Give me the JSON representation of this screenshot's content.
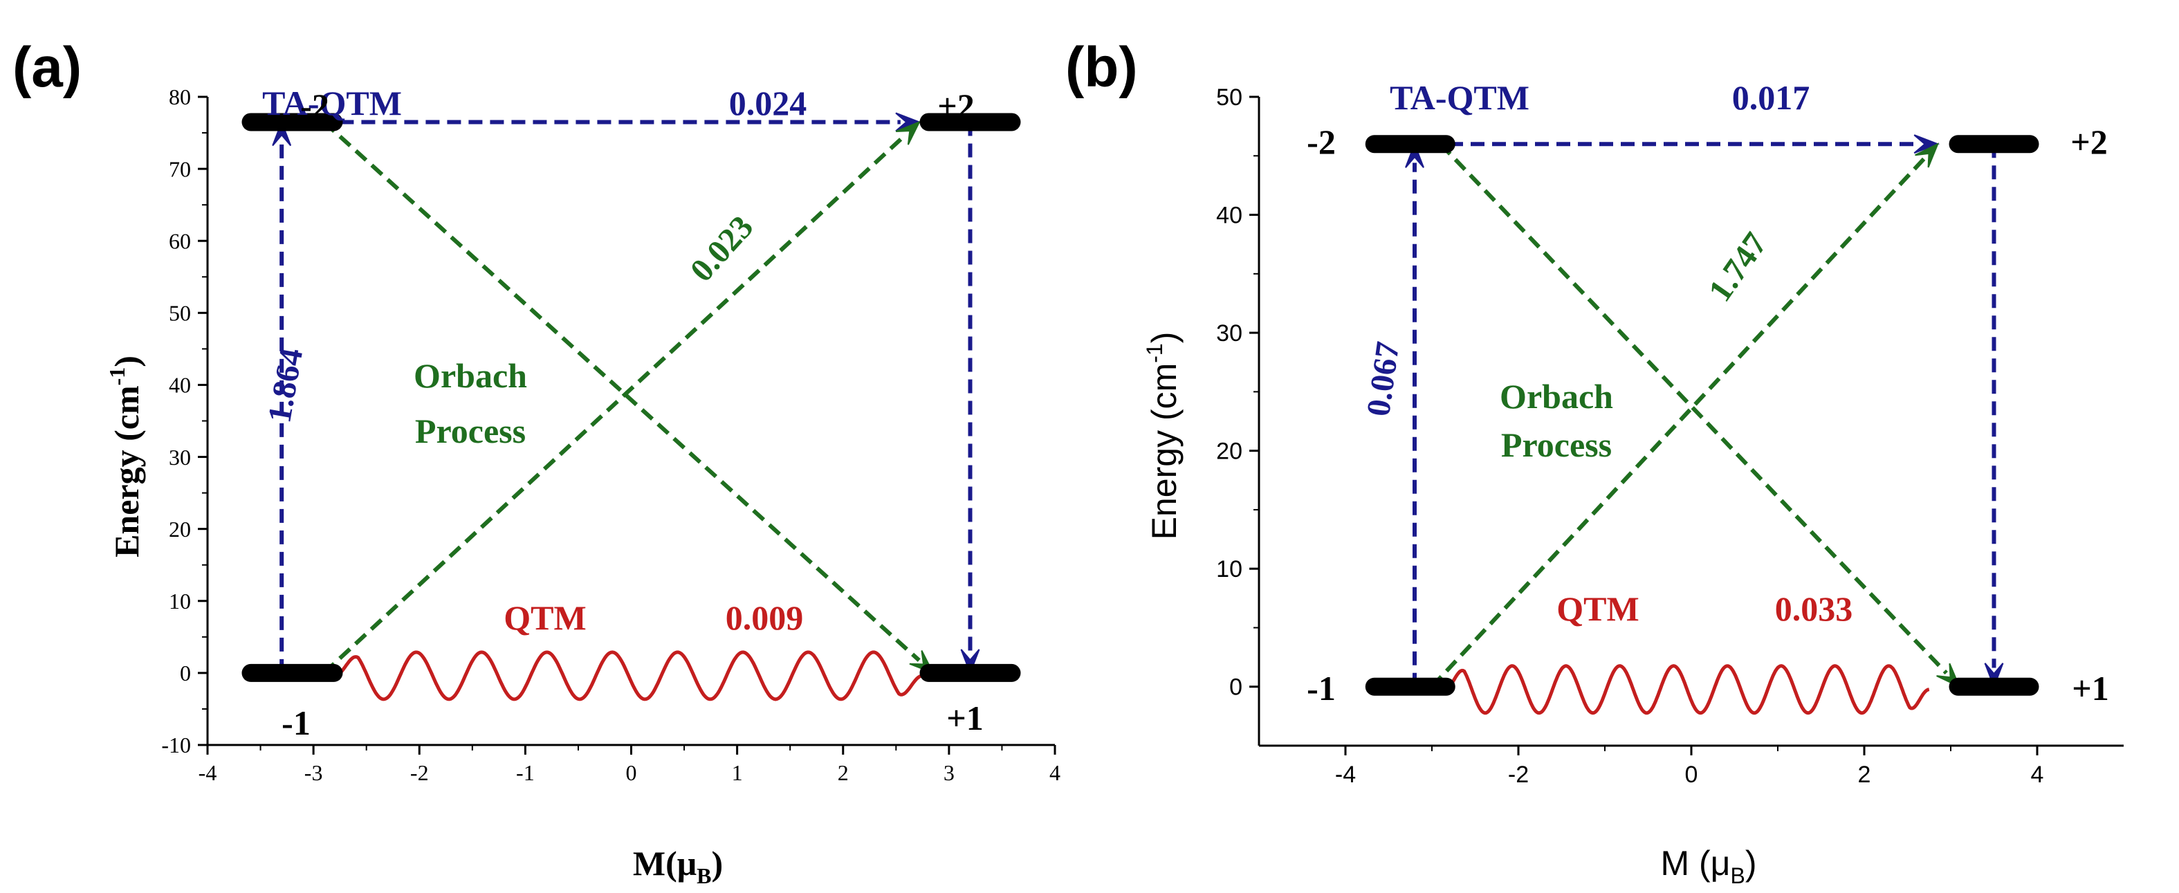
{
  "colors": {
    "blue": "#1a1a8c",
    "green": "#1f6e1f",
    "red": "#c41e1e",
    "black": "#000000"
  },
  "chart_data": [
    {
      "panel_label": "(a)",
      "type": "energy-level-diagram",
      "xlabel_main": "M(μ",
      "xlabel_sub": "B",
      "xlabel_close": ")",
      "ylabel_main": "Energy (cm",
      "ylabel_sup": "-1",
      "ylabel_close": ")",
      "xlim": [
        -4,
        4
      ],
      "ylim": [
        -10,
        80
      ],
      "xticks": [
        -4,
        -3,
        -2,
        -1,
        0,
        1,
        2,
        3,
        4
      ],
      "yticks": [
        -10,
        0,
        10,
        20,
        30,
        40,
        50,
        60,
        70,
        80
      ],
      "levels": [
        {
          "label": "-2",
          "m": -3.2,
          "energy": 76.5
        },
        {
          "label": "+2",
          "m": 3.2,
          "energy": 76.5
        },
        {
          "label": "-1",
          "m": -3.2,
          "energy": 0
        },
        {
          "label": "+1",
          "m": 3.2,
          "energy": 0
        }
      ],
      "transitions": [
        {
          "type": "TA-QTM",
          "from": [
            -2.75,
            76.5
          ],
          "to": [
            2.72,
            76.5
          ],
          "value": "0.024"
        },
        {
          "type": "excitation",
          "from": [
            -3.3,
            0
          ],
          "to": [
            -3.3,
            76.5
          ],
          "value": "1.864"
        },
        {
          "type": "relaxation",
          "from": [
            3.2,
            76.5
          ],
          "to": [
            3.2,
            0
          ],
          "value": ""
        },
        {
          "type": "Orbach",
          "from": [
            -2.9,
            0
          ],
          "to": [
            2.72,
            76.5
          ],
          "value": "0.023"
        },
        {
          "type": "Orbach",
          "from": [
            -2.9,
            76.5
          ],
          "to": [
            2.85,
            0
          ],
          "value": ""
        }
      ],
      "qtm": {
        "label": "QTM",
        "value": "0.009",
        "from_m": -2.8,
        "to_m": 2.75,
        "energy": 0
      },
      "ta_qtm_label": "TA-QTM",
      "orbach_label": [
        "Orbach",
        "Process"
      ]
    },
    {
      "panel_label": "(b)",
      "type": "energy-level-diagram",
      "xlabel_main": "M (μ",
      "xlabel_sub": "B",
      "xlabel_close": ")",
      "ylabel_main": "Energy (cm",
      "ylabel_sup": "-1",
      "ylabel_close": ")",
      "xlim": [
        -5,
        5
      ],
      "ylim": [
        -5,
        50
      ],
      "xticks": [
        -4,
        -2,
        0,
        2,
        4
      ],
      "yticks": [
        0,
        10,
        20,
        30,
        40,
        50
      ],
      "levels": [
        {
          "label": "-2",
          "m": -3.25,
          "energy": 46
        },
        {
          "label": "+2",
          "m": 3.5,
          "energy": 46
        },
        {
          "label": "-1",
          "m": -3.25,
          "energy": 0
        },
        {
          "label": "+1",
          "m": 3.5,
          "energy": 0
        }
      ],
      "transitions": [
        {
          "type": "TA-QTM",
          "from": [
            -2.8,
            46
          ],
          "to": [
            2.85,
            46
          ],
          "value": "0.017"
        },
        {
          "type": "excitation",
          "from": [
            -3.2,
            0
          ],
          "to": [
            -3.2,
            46
          ],
          "value": "0.067"
        },
        {
          "type": "relaxation",
          "from": [
            3.5,
            46
          ],
          "to": [
            3.5,
            0
          ],
          "value": ""
        },
        {
          "type": "Orbach",
          "from": [
            -3.0,
            0
          ],
          "to": [
            2.85,
            46
          ],
          "value": "1.747"
        },
        {
          "type": "Orbach",
          "from": [
            -2.9,
            46
          ],
          "to": [
            3.1,
            0
          ],
          "value": ""
        }
      ],
      "qtm": {
        "label": "QTM",
        "value": "0.033",
        "from_m": -2.85,
        "to_m": 2.75,
        "energy": 0
      },
      "ta_qtm_label": "TA-QTM",
      "orbach_label": [
        "Orbach",
        "Process"
      ]
    }
  ]
}
